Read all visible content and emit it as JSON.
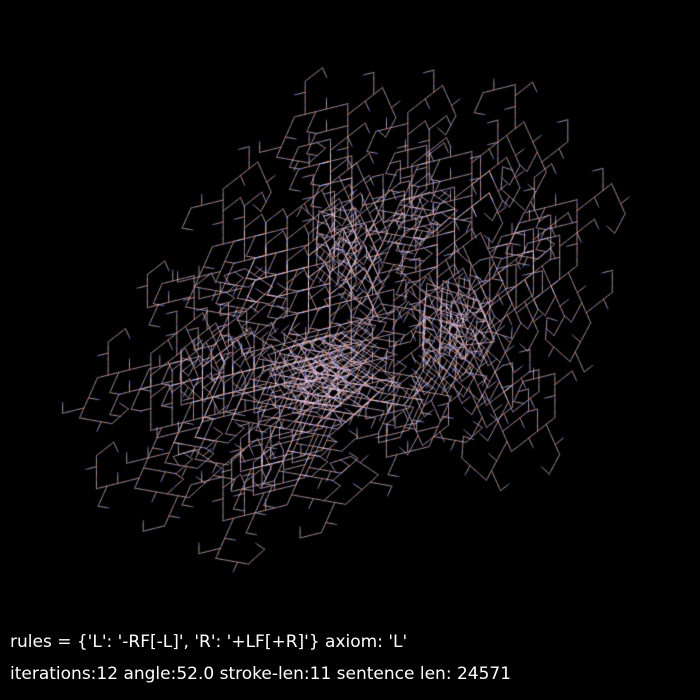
{
  "caption": {
    "rules_line": "rules = {'L': '-RF[-L]', 'R': '+LF[+R]'} axiom: 'L'",
    "stats_line": "iterations:12 angle:52.0 stroke-len:11 sentence len: 24571"
  },
  "lsystem": {
    "axiom": "L",
    "rules": {
      "L": "-RF[-L]",
      "R": "+LF[+R]"
    },
    "iterations": 12,
    "angle": 52.0,
    "stroke_len": 11,
    "sentence_len": 24571
  },
  "colors": {
    "background": "#000000",
    "text": "#ffffff",
    "stroke_warm": "#ff9a7a",
    "stroke_cool": "#8a8aff",
    "stroke_light": "#f0e6f0"
  }
}
